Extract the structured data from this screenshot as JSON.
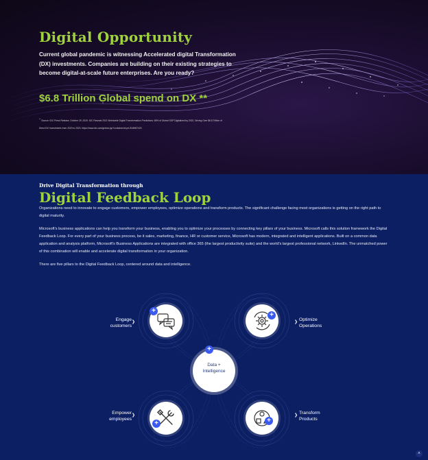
{
  "hero": {
    "title": "Digital Opportunity",
    "description": "Current global pandemic is witnessing Accelerated digital Transformation (DX) investments. Companies are building on their existing strategies to become digital-at-scale future enterprises. Are you ready?",
    "spend": "$6.8 Trillion Global spend on DX **",
    "footnote_marker": "**",
    "footnote_line1": "Source: IDC Press Release, October 29, 2020: IDC Reveals 2021 Worldwide Digital Transformation Predictions; 65% of Global GDP Digitalized by 2022, Driving Over $6.8 Trillion of",
    "footnote_line2": "Direct DX Investments from 2020 to 2023. https://www.idc.com/getdoc.jsp?containerId=prUS46967420"
  },
  "loop": {
    "pretitle": "Drive Digital Transformation through",
    "title": "Digital Feedback Loop",
    "para1": "Organizations need to innovate to engage customers, empower employees, optimize operations and transform products. The significant challenge facing most organizations is getting on the right path to digital maturity.",
    "para2": "Microsoft's business applications can help you transform your business, enabling you to optimize your processes by connecting key pillars of your business. Microsoft calls this solution framework the Digital Feedback Loop. For every part of your business process, be it sales, marketing, finance, HR or customer service, Microsoft has modern, integrated and intelligent applications. Built on a common data application and analysis platform, Microsoft's Business Applications are integrated with office 365 (the largest productivity suite) and the world's largest professional network, LinkedIn. The unmatched power of this combination will enable and accelerate digital transformation in your organization.",
    "para3": "There are five pillars to the Digital Feedback Loop, centered around data and intelligence."
  },
  "diagram": {
    "center_line1": "Data +",
    "center_line2": "Intelligence",
    "engage_line1": "Engage",
    "engage_line2": "customers",
    "optimize_line1": "Optimize",
    "optimize_line2": "Operations",
    "empower_line1": "Empower",
    "empower_line2": "employees",
    "transform_line1": "Transform",
    "transform_line2": "Products",
    "plus_symbol": "+",
    "arrow_symbol": "❯"
  },
  "icons": {
    "engage": "chat-bubbles-icon",
    "optimize": "gear-cycle-icon",
    "empower": "tools-icon",
    "transform": "product-cycle-icon",
    "scroll_top": "chevron-up-icon"
  },
  "colors": {
    "accent_green": "#9fd23d",
    "section_blue": "#0c1f63",
    "plus_blue": "#3b5bf0"
  },
  "scroll_top_symbol": "˄"
}
